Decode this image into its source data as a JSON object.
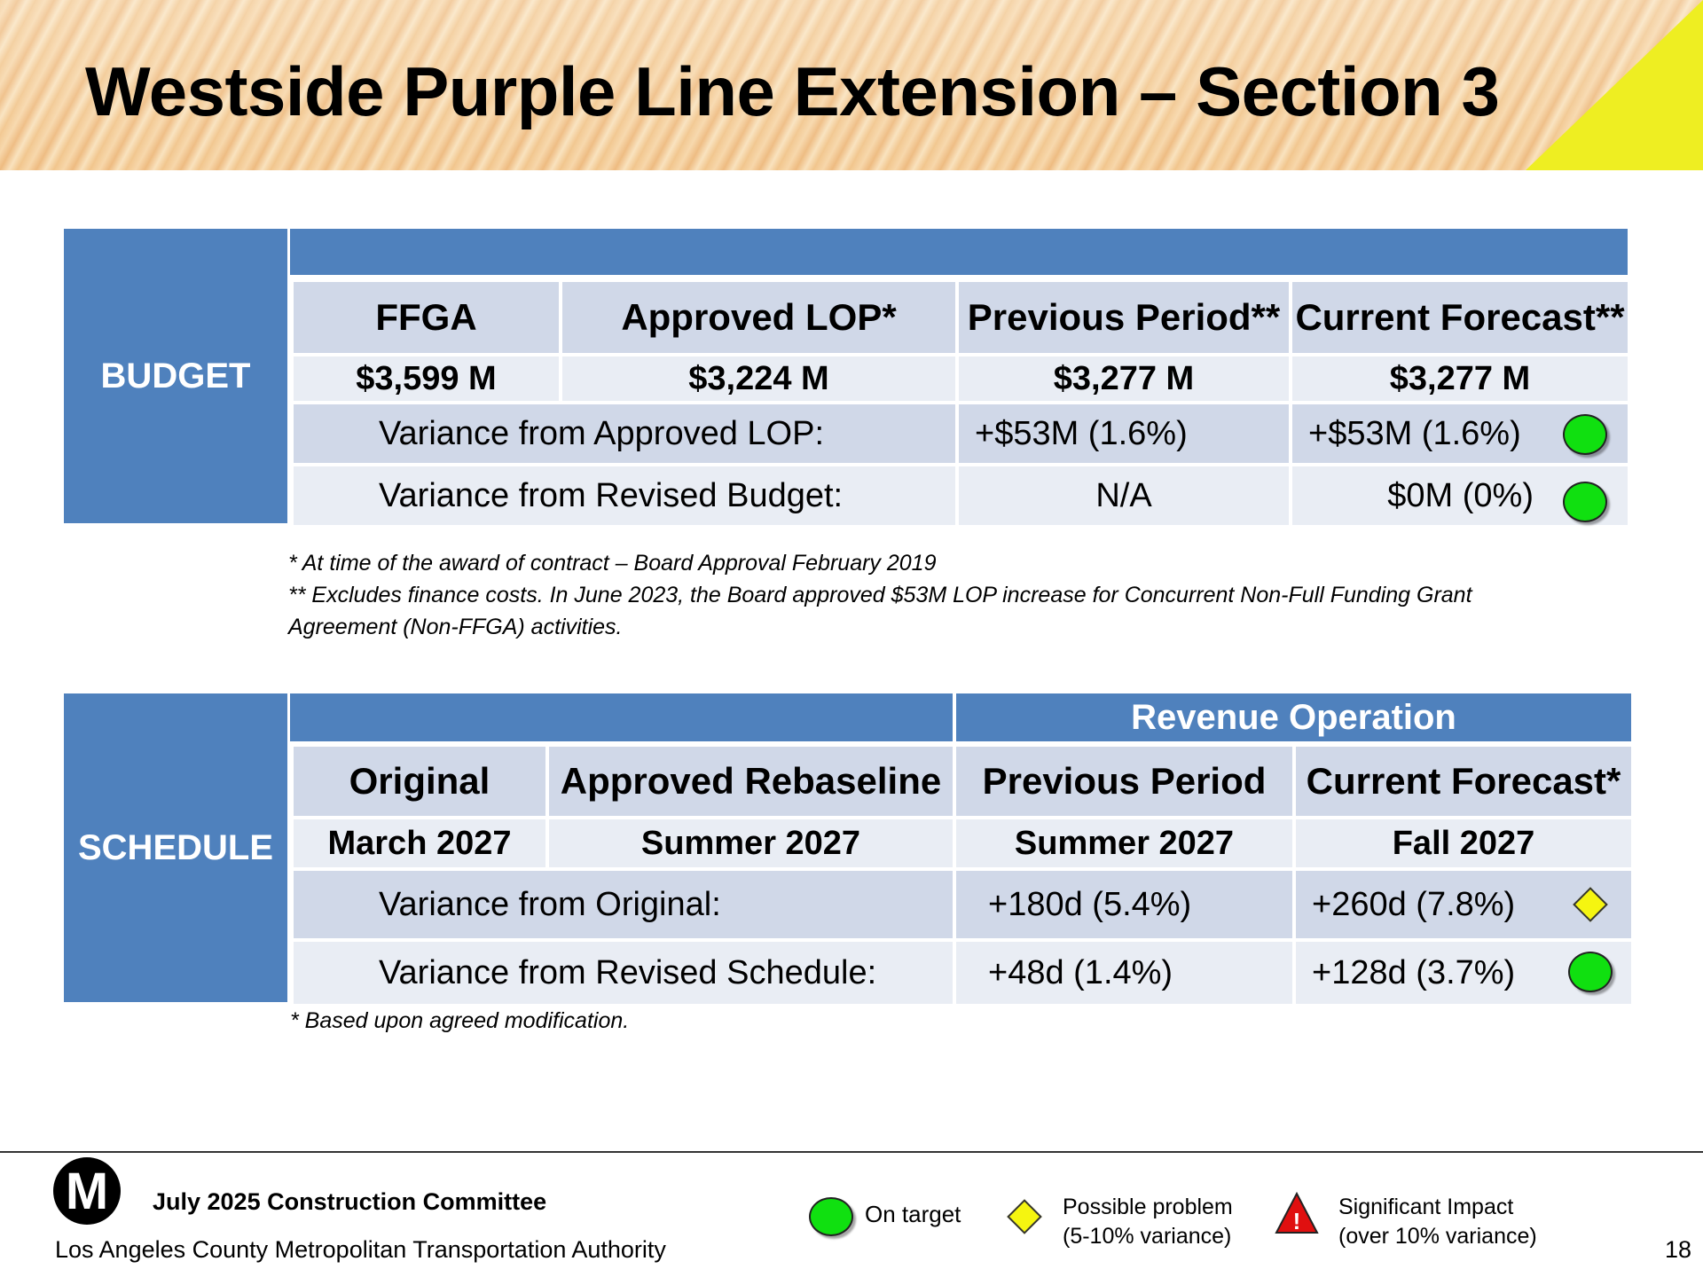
{
  "title": "Westside Purple Line Extension – Section 3",
  "budget": {
    "label": "BUDGET",
    "headers": [
      "FFGA",
      "Approved LOP*",
      "Previous Period**",
      "Current Forecast**"
    ],
    "values": [
      "$3,599 M",
      "$3,224 M",
      "$3,277 M",
      "$3,277 M"
    ],
    "variance_rows": [
      {
        "label": "Variance from Approved LOP:",
        "previous": "+$53M (1.6%)",
        "current": "+$53M (1.6%)",
        "status": "on-target"
      },
      {
        "label": "Variance from Revised Budget:",
        "previous": "N/A",
        "current": "$0M (0%)",
        "status": "on-target"
      }
    ],
    "notes": [
      "* At time of the award of contract – Board Approval February 2019",
      "** Excludes finance costs.  In June 2023, the Board approved $53M LOP increase for Concurrent Non-Full Funding Grant",
      "Agreement (Non-FFGA) activities."
    ]
  },
  "schedule": {
    "label": "SCHEDULE",
    "group_header": "Revenue Operation",
    "headers": [
      "Original",
      "Approved Rebaseline",
      "Previous Period",
      "Current Forecast*"
    ],
    "values": [
      "March 2027",
      "Summer 2027",
      "Summer 2027",
      "Fall 2027"
    ],
    "variance_rows": [
      {
        "label": "Variance from Original:",
        "previous": "+180d (5.4%)",
        "current": "+260d (7.8%)",
        "status": "possible-problem"
      },
      {
        "label": "Variance from Revised Schedule:",
        "previous": "+48d (1.4%)",
        "current": "+128d (3.7%)",
        "status": "on-target"
      }
    ],
    "note": "* Based upon agreed modification."
  },
  "footer": {
    "logo_letter": "M",
    "committee": "July 2025 Construction Committee",
    "agency": "Los Angeles County Metropolitan Transportation Authority",
    "page_number": "18",
    "legend": [
      {
        "label": "On target",
        "icon": "green-circle-icon"
      },
      {
        "label_line1": "Possible problem",
        "label_line2": "(5-10% variance)",
        "icon": "yellow-diamond-icon"
      },
      {
        "label_line1": "Significant Impact",
        "label_line2": "(over 10% variance)",
        "icon": "red-triangle-icon"
      }
    ]
  },
  "colors": {
    "header_blue": "#4f81bd",
    "on_target": "#10e010",
    "possible_problem": "#f5f510",
    "significant": "#e01010"
  }
}
